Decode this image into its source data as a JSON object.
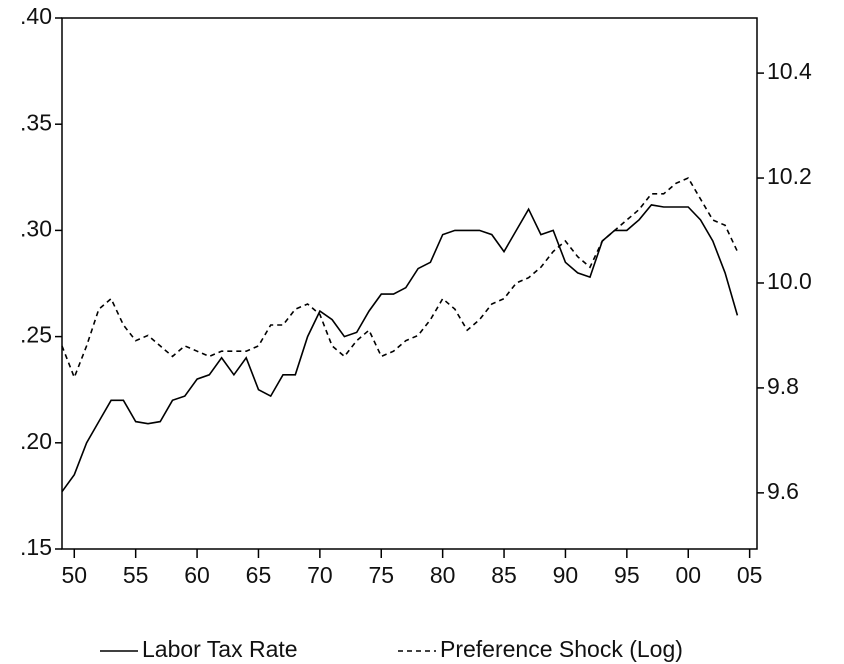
{
  "chart_data": {
    "type": "line",
    "x": [
      1949,
      1950,
      1951,
      1952,
      1953,
      1954,
      1955,
      1956,
      1957,
      1958,
      1959,
      1960,
      1961,
      1962,
      1963,
      1964,
      1965,
      1966,
      1967,
      1968,
      1969,
      1970,
      1971,
      1972,
      1973,
      1974,
      1975,
      1976,
      1977,
      1978,
      1979,
      1980,
      1981,
      1982,
      1983,
      1984,
      1985,
      1986,
      1987,
      1988,
      1989,
      1990,
      1991,
      1992,
      1993,
      1994,
      1995,
      1996,
      1997,
      1998,
      1999,
      2000,
      2001,
      2002,
      2003,
      2004
    ],
    "series": [
      {
        "name": "Labor Tax Rate",
        "color": "#000000",
        "dash": "solid",
        "axis": "y",
        "values": [
          0.177,
          0.185,
          0.2,
          0.21,
          0.22,
          0.22,
          0.21,
          0.209,
          0.21,
          0.22,
          0.222,
          0.23,
          0.232,
          0.24,
          0.232,
          0.24,
          0.225,
          0.222,
          0.232,
          0.232,
          0.25,
          0.262,
          0.258,
          0.25,
          0.252,
          0.262,
          0.27,
          0.27,
          0.273,
          0.282,
          0.285,
          0.298,
          0.3,
          0.3,
          0.3,
          0.298,
          0.29,
          0.3,
          0.31,
          0.298,
          0.3,
          0.285,
          0.28,
          0.278,
          0.295,
          0.3,
          0.3,
          0.305,
          0.312,
          0.311,
          0.311,
          0.311,
          0.305,
          0.295,
          0.28,
          0.26
        ]
      },
      {
        "name": "Preference Shock (Log)",
        "color": "#000000",
        "dash": "dashed",
        "axis": "y2",
        "values": [
          9.88,
          9.82,
          9.88,
          9.95,
          9.97,
          9.92,
          9.89,
          9.9,
          9.88,
          9.86,
          9.88,
          9.87,
          9.86,
          9.87,
          9.87,
          9.87,
          9.88,
          9.92,
          9.92,
          9.95,
          9.96,
          9.94,
          9.88,
          9.86,
          9.89,
          9.91,
          9.86,
          9.87,
          9.89,
          9.9,
          9.93,
          9.97,
          9.95,
          9.91,
          9.93,
          9.96,
          9.97,
          10.0,
          10.01,
          10.03,
          10.06,
          10.08,
          10.05,
          10.03,
          10.08,
          10.1,
          10.12,
          10.14,
          10.17,
          10.17,
          10.19,
          10.2,
          10.16,
          10.12,
          10.11,
          10.06
        ]
      }
    ],
    "xlim": [
      1949,
      2005.6
    ],
    "xticks": [
      {
        "value": 1950,
        "label": "50"
      },
      {
        "value": 1955,
        "label": "55"
      },
      {
        "value": 1960,
        "label": "60"
      },
      {
        "value": 1965,
        "label": "65"
      },
      {
        "value": 1970,
        "label": "70"
      },
      {
        "value": 1975,
        "label": "75"
      },
      {
        "value": 1980,
        "label": "80"
      },
      {
        "value": 1985,
        "label": "85"
      },
      {
        "value": 1990,
        "label": "90"
      },
      {
        "value": 1995,
        "label": "95"
      },
      {
        "value": 2000,
        "label": "00"
      },
      {
        "value": 2005,
        "label": "05"
      }
    ],
    "ylim": [
      0.15,
      0.4
    ],
    "yticks": [
      {
        "value": 0.15,
        "label": ".15"
      },
      {
        "value": 0.2,
        "label": ".20"
      },
      {
        "value": 0.25,
        "label": ".25"
      },
      {
        "value": 0.3,
        "label": ".30"
      },
      {
        "value": 0.35,
        "label": ".35"
      },
      {
        "value": 0.4,
        "label": ".40"
      }
    ],
    "y2lim": [
      9.493,
      10.505
    ],
    "y2ticks": [
      9.6,
      9.8,
      {
        "value": 10,
        "label": "10.0"
      },
      10.2,
      10.4
    ],
    "legend": "bottom"
  }
}
